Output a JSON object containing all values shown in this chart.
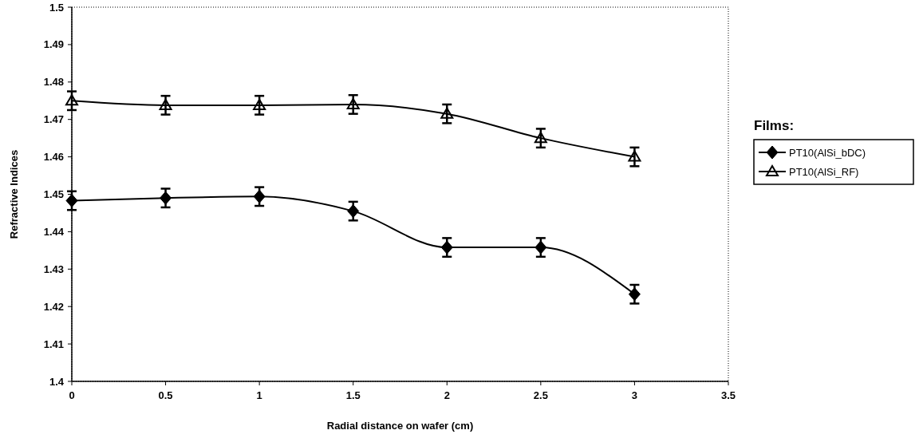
{
  "chart_data": {
    "type": "line",
    "xlabel": "Radial distance on wafer (cm)",
    "ylabel": "Refractive Indices",
    "legend_title": "Films:",
    "legend": "right",
    "grid": false,
    "xlim": [
      0,
      3.5
    ],
    "xticks": [
      0,
      0.5,
      1,
      1.5,
      2,
      2.5,
      3,
      3.5
    ],
    "ylim": [
      1.4,
      1.5
    ],
    "yticks": [
      1.4,
      1.41,
      1.42,
      1.43,
      1.44,
      1.45,
      1.46,
      1.47,
      1.48,
      1.49,
      1.5
    ],
    "x": [
      0,
      0.5,
      1,
      1.5,
      2,
      2.5,
      3
    ],
    "series": [
      {
        "name": "PT10(AlSi_bDC)",
        "color": "#000000",
        "marker": "diamond",
        "values": [
          1.4483,
          1.449,
          1.4494,
          1.4455,
          1.4358,
          1.4358,
          1.4233
        ],
        "errors": [
          0.0025,
          0.0025,
          0.0025,
          0.0025,
          0.0025,
          0.0025,
          0.0025
        ]
      },
      {
        "name": "PT10(AlSi_RF)",
        "color": "#000000",
        "marker": "triangle",
        "values": [
          1.475,
          1.4738,
          1.4738,
          1.474,
          1.4715,
          1.465,
          1.46
        ],
        "errors": [
          0.0025,
          0.0025,
          0.0025,
          0.0025,
          0.0025,
          0.0025,
          0.0025
        ]
      }
    ]
  }
}
